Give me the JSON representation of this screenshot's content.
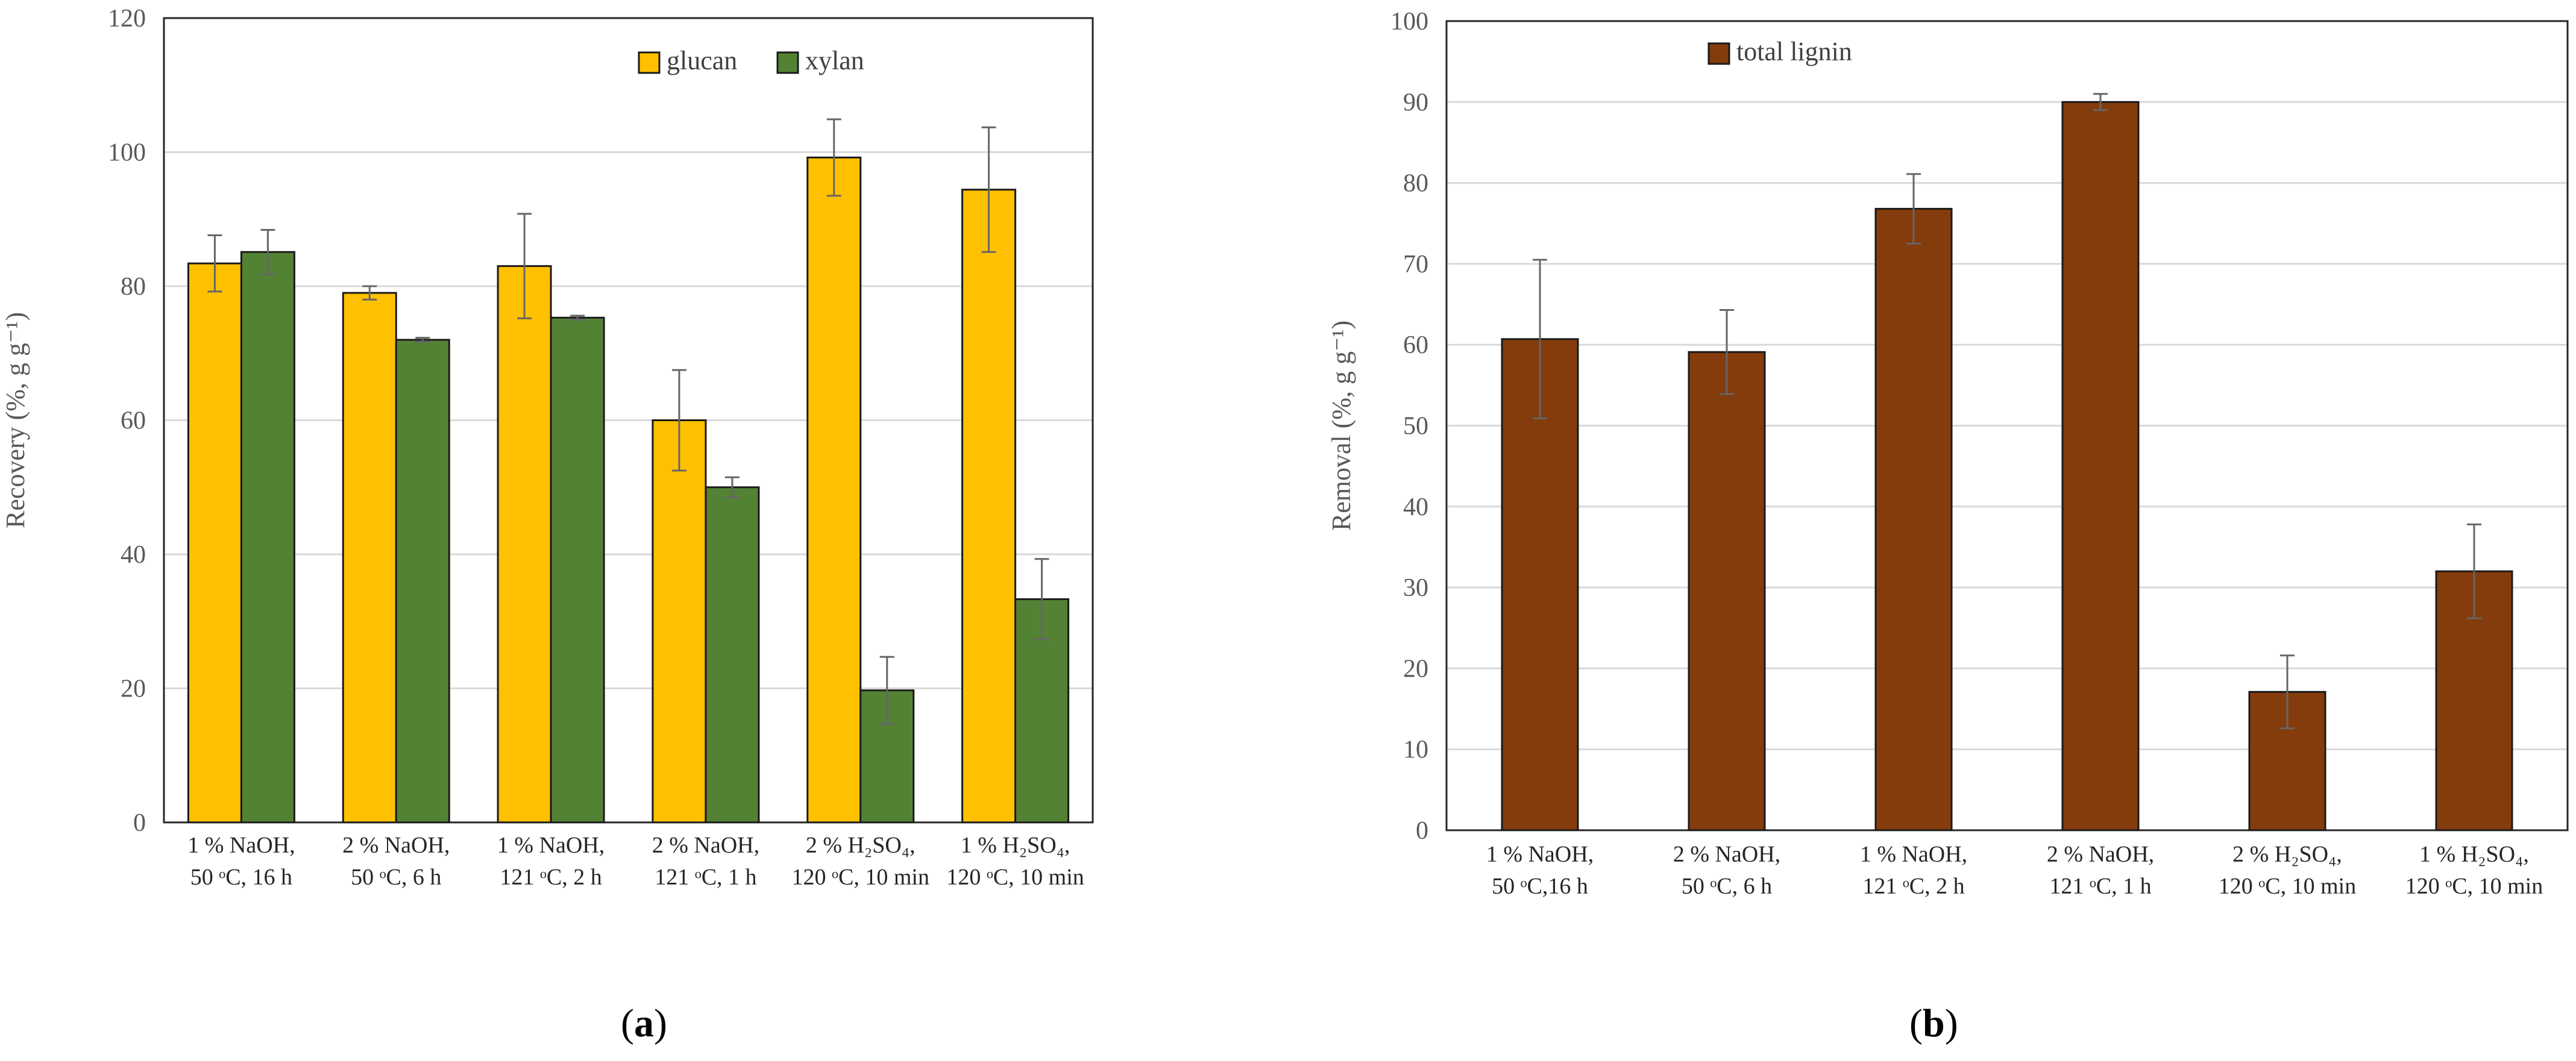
{
  "panels": [
    {
      "panel_label": "a",
      "chart_data": {
        "type": "bar",
        "ylabel": "Recovery (%, g g⁻¹)",
        "ylim": [
          0,
          120
        ],
        "yticks": [
          0,
          20,
          40,
          60,
          80,
          100,
          120
        ],
        "grid": true,
        "legend_position": "top-center",
        "categories": [
          [
            "1 % NaOH,",
            "50 ᵒC, 16 h"
          ],
          [
            "2 % NaOH,",
            "50 ᵒC, 6 h"
          ],
          [
            "1 % NaOH,",
            "121 ᵒC, 2 h"
          ],
          [
            "2 % NaOH,",
            "121 ᵒC, 1 h"
          ],
          [
            "2 % H₂SO₄,",
            "120 ᵒC, 10 min"
          ],
          [
            "1 % H₂SO₄,",
            "120 ᵒC, 10 min"
          ]
        ],
        "series": [
          {
            "name": "glucan",
            "color": "#FFC000",
            "values": [
              83.4,
              79.0,
              83.0,
              60.0,
              99.2,
              94.4
            ],
            "errors": [
              4.2,
              1.0,
              7.8,
              7.5,
              5.7,
              9.3
            ]
          },
          {
            "name": "xylan",
            "color": "#548235",
            "values": [
              85.1,
              72.0,
              75.3,
              50.0,
              19.7,
              33.3
            ],
            "errors": [
              3.3,
              0.3,
              0.3,
              1.5,
              5.0,
              6.0
            ]
          }
        ]
      }
    },
    {
      "panel_label": "b",
      "chart_data": {
        "type": "bar",
        "ylabel": "Removal (%, g g⁻¹)",
        "ylim": [
          0,
          100
        ],
        "yticks": [
          0,
          10,
          20,
          30,
          40,
          50,
          60,
          70,
          80,
          90,
          100
        ],
        "grid": true,
        "legend_position": "top-center",
        "categories": [
          [
            "1 % NaOH,",
            "50 ᵒC,16 h"
          ],
          [
            "2 % NaOH,",
            "50 ᵒC, 6 h"
          ],
          [
            "1 % NaOH,",
            "121 ᵒC, 2 h"
          ],
          [
            "2 % NaOH,",
            "121 ᵒC, 1 h"
          ],
          [
            "2 % H₂SO₄,",
            "120 ᵒC, 10 min"
          ],
          [
            "1 % H₂SO₄,",
            "120 ᵒC, 10 min"
          ]
        ],
        "series": [
          {
            "name": "total lignin",
            "color": "#843C0C",
            "values": [
              60.7,
              59.1,
              76.8,
              90.0,
              17.1,
              32.0
            ],
            "errors": [
              9.8,
              5.2,
              4.3,
              1.0,
              4.5,
              5.8
            ]
          }
        ]
      }
    }
  ]
}
